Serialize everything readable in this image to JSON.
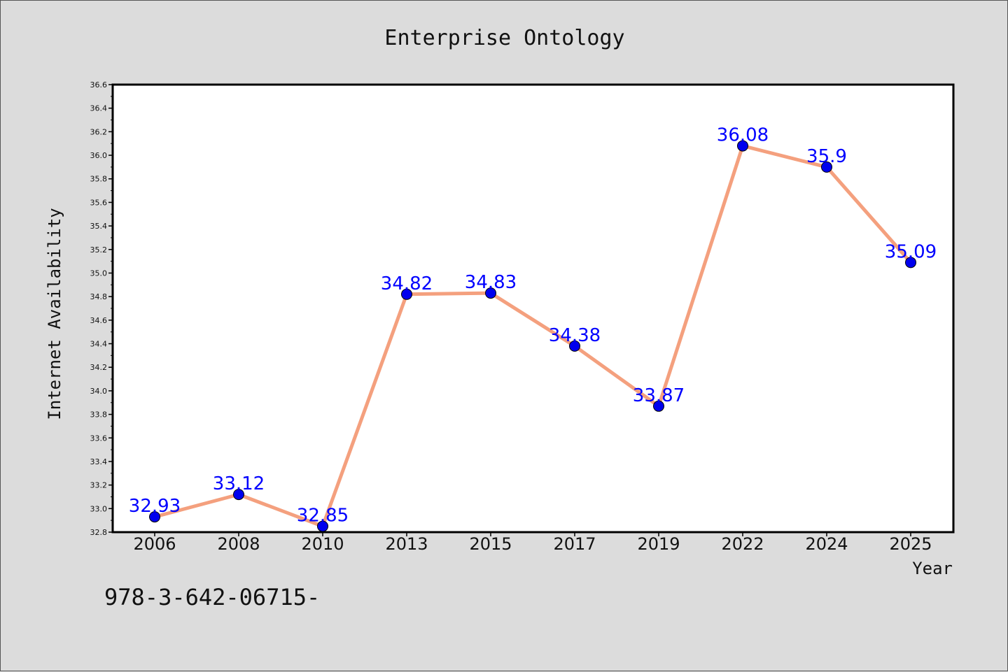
{
  "footer_text": "978-3-642-06715-",
  "chart_data": {
    "type": "line",
    "title": "Enterprise Ontology",
    "xlabel": "Year",
    "ylabel": "Internet Availability",
    "categories": [
      "2006",
      "2008",
      "2010",
      "2013",
      "2015",
      "2017",
      "2019",
      "2022",
      "2024",
      "2025"
    ],
    "series": [
      {
        "values": [
          32.93,
          33.12,
          32.85,
          34.82,
          34.83,
          34.38,
          33.87,
          36.08,
          35.9,
          35.09
        ],
        "data_labels": [
          "32.93",
          "33.12",
          "32.85",
          "34.82",
          "34.83",
          "34.38",
          "33.87",
          "36.08",
          "35.9",
          "35.09"
        ],
        "line_color": "#f4a07e",
        "marker_color": "#0000ee"
      }
    ],
    "ylim": [
      32.8,
      36.6
    ],
    "yticks": [
      "32.8",
      "33.0",
      "33.2",
      "33.4",
      "33.6",
      "33.8",
      "34.0",
      "34.2",
      "34.4",
      "34.6",
      "34.8",
      "35.0",
      "35.2",
      "35.4",
      "35.6",
      "35.8",
      "36.0",
      "36.2",
      "36.4",
      "36.6"
    ],
    "grid": false,
    "legend": "none",
    "plot_background": "#ffffff",
    "page_background": "#dcdcdc",
    "label_color": "#0000ff"
  }
}
